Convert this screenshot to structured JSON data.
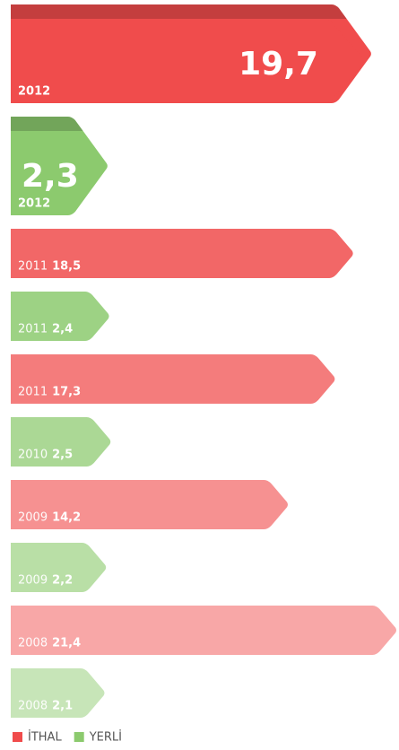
{
  "chart_data": {
    "type": "bar",
    "categories": [
      "2012",
      "2012",
      "2011",
      "2011",
      "2011",
      "2010",
      "2009",
      "2009",
      "2008",
      "2008"
    ],
    "series": [
      {
        "name": "İTHAL",
        "color": "#f04c4c",
        "values": [
          19.7,
          null,
          18.5,
          null,
          17.3,
          null,
          14.2,
          null,
          21.4,
          null
        ],
        "value_labels": [
          "19,7",
          null,
          "18,5",
          null,
          "17,3",
          null,
          "14,2",
          null,
          "21,4",
          null
        ]
      },
      {
        "name": "YERLİ",
        "color": "#8cca6e",
        "values": [
          null,
          2.3,
          null,
          2.4,
          null,
          2.5,
          null,
          2.2,
          null,
          2.1
        ],
        "value_labels": [
          null,
          "2,3",
          null,
          "2,4",
          null,
          "2,5",
          null,
          "2,2",
          null,
          "2,1"
        ]
      }
    ]
  }
}
